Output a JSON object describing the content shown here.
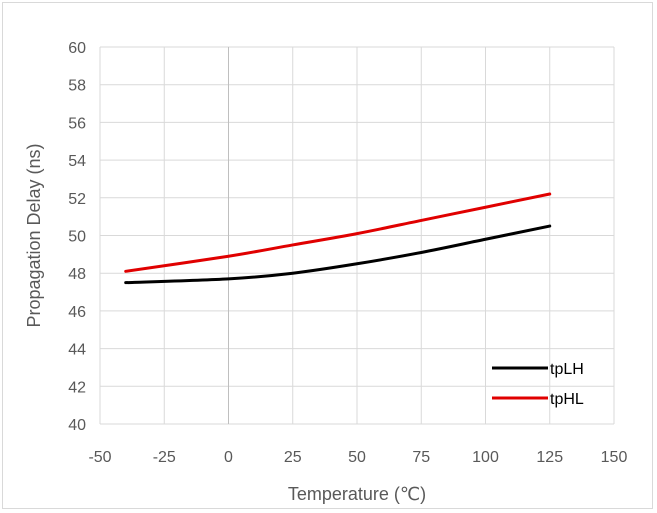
{
  "chart_data": {
    "type": "line",
    "title": "",
    "xlabel": "Temperature (℃)",
    "ylabel": "Propagation Delay (ns)",
    "xlim": [
      -50,
      150
    ],
    "ylim": [
      40,
      60
    ],
    "x_ticks": [
      -50,
      -25,
      0,
      25,
      50,
      75,
      100,
      125,
      150
    ],
    "y_ticks": [
      40,
      42,
      44,
      46,
      48,
      50,
      52,
      54,
      56,
      58,
      60
    ],
    "grid": "horizontal and vertical",
    "legend_position": "bottom-right",
    "series": [
      {
        "name": "tpLH",
        "color": "#000000",
        "x": [
          -40,
          0,
          25,
          50,
          75,
          100,
          125
        ],
        "y": [
          47.5,
          47.7,
          48.0,
          48.5,
          49.1,
          49.8,
          50.5
        ]
      },
      {
        "name": "tpHL",
        "color": "#e00000",
        "x": [
          -40,
          0,
          25,
          50,
          75,
          100,
          125
        ],
        "y": [
          48.1,
          48.9,
          49.5,
          50.1,
          50.8,
          51.5,
          52.2
        ]
      }
    ]
  }
}
